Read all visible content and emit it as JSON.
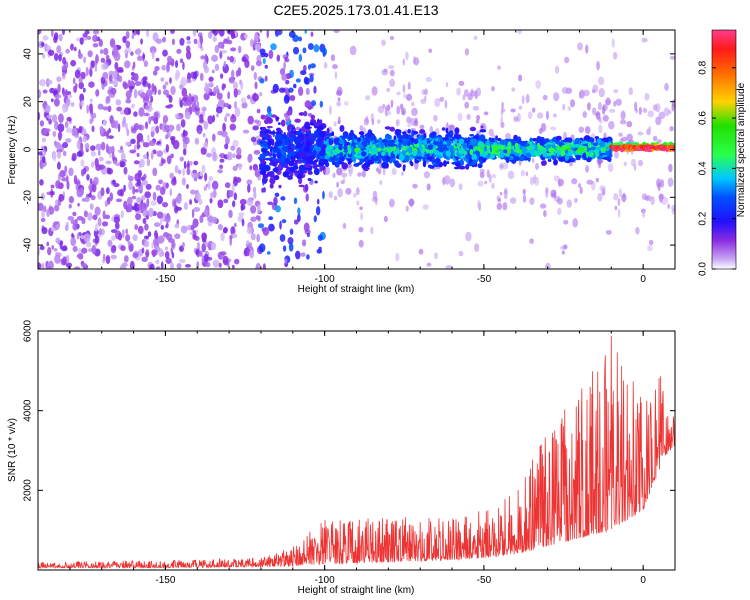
{
  "title": "C2E5.2025.173.01.41.E13",
  "chart_data": [
    {
      "type": "heatmap",
      "xlabel": "Height of straight line (km)",
      "ylabel": "Frequency (Hz)",
      "xlim": [
        -190,
        10
      ],
      "ylim": [
        -50,
        50
      ],
      "xticks": [
        -150,
        -100,
        -50,
        0
      ],
      "xtick_labels": [
        "-150",
        "-100",
        "-50",
        "0"
      ],
      "yticks": [
        -40,
        -20,
        0,
        20,
        40
      ],
      "ytick_labels": [
        "-40",
        "-20",
        "0",
        "20",
        "40"
      ],
      "colorbar": {
        "label": "Normalized spectral amplitude",
        "range": [
          0,
          0.95
        ],
        "ticks": [
          0,
          0.2,
          0.4,
          0.6,
          0.8
        ],
        "tick_labels": [
          "0.0",
          "0.2",
          "0.4",
          "0.6",
          "0.8"
        ]
      },
      "zones": [
        {
          "x": [
            -190,
            -120
          ],
          "freq_spread": 50,
          "amplitude": 0.08,
          "note": "broadband noise"
        },
        {
          "x": [
            -120,
            -100
          ],
          "freq_spread": 20,
          "amplitude": 0.2
        },
        {
          "x": [
            -100,
            -50
          ],
          "freq_spread": 10,
          "amplitude": 0.3
        },
        {
          "x": [
            -50,
            -10
          ],
          "freq_spread": 6,
          "amplitude": 0.35
        },
        {
          "x": [
            -10,
            10
          ],
          "freq_spread": 2,
          "amplitude": 0.9
        }
      ],
      "colors": {
        "noise": "#8c2cf0",
        "signal_band": [
          "#1f10ff",
          "#00c8ff",
          "#2bff49",
          "#ffd200",
          "#ff1a1a"
        ]
      }
    },
    {
      "type": "line",
      "xlabel": "Height of straight line (km)",
      "ylabel": "SNR (10 * v/v)",
      "xlim": [
        -190,
        10
      ],
      "ylim": [
        0,
        6000
      ],
      "xticks": [
        -150,
        -100,
        -50,
        0
      ],
      "xtick_labels": [
        "-150",
        "-100",
        "-50",
        "0"
      ],
      "yticks": [
        2000,
        4000,
        6000
      ],
      "ytick_labels": [
        "2000",
        "4000",
        "6000"
      ],
      "series": [
        {
          "color": "#ee3333",
          "envelope": {
            "x": [
              -190,
              -150,
              -120,
              -110,
              -100,
              -80,
              -60,
              -50,
              -40,
              -30,
              -20,
              -10,
              0,
              5,
              8,
              10
            ],
            "base": [
              50,
              60,
              80,
              100,
              150,
              200,
              250,
              300,
              400,
              600,
              800,
              1000,
              1500,
              2500,
              3000,
              3000
            ],
            "peak": [
              200,
              250,
              300,
              600,
              1300,
              1300,
              1400,
              1500,
              2000,
              3500,
              4500,
              6000,
              4200,
              4900,
              4900,
              3600
            ]
          }
        }
      ]
    }
  ]
}
